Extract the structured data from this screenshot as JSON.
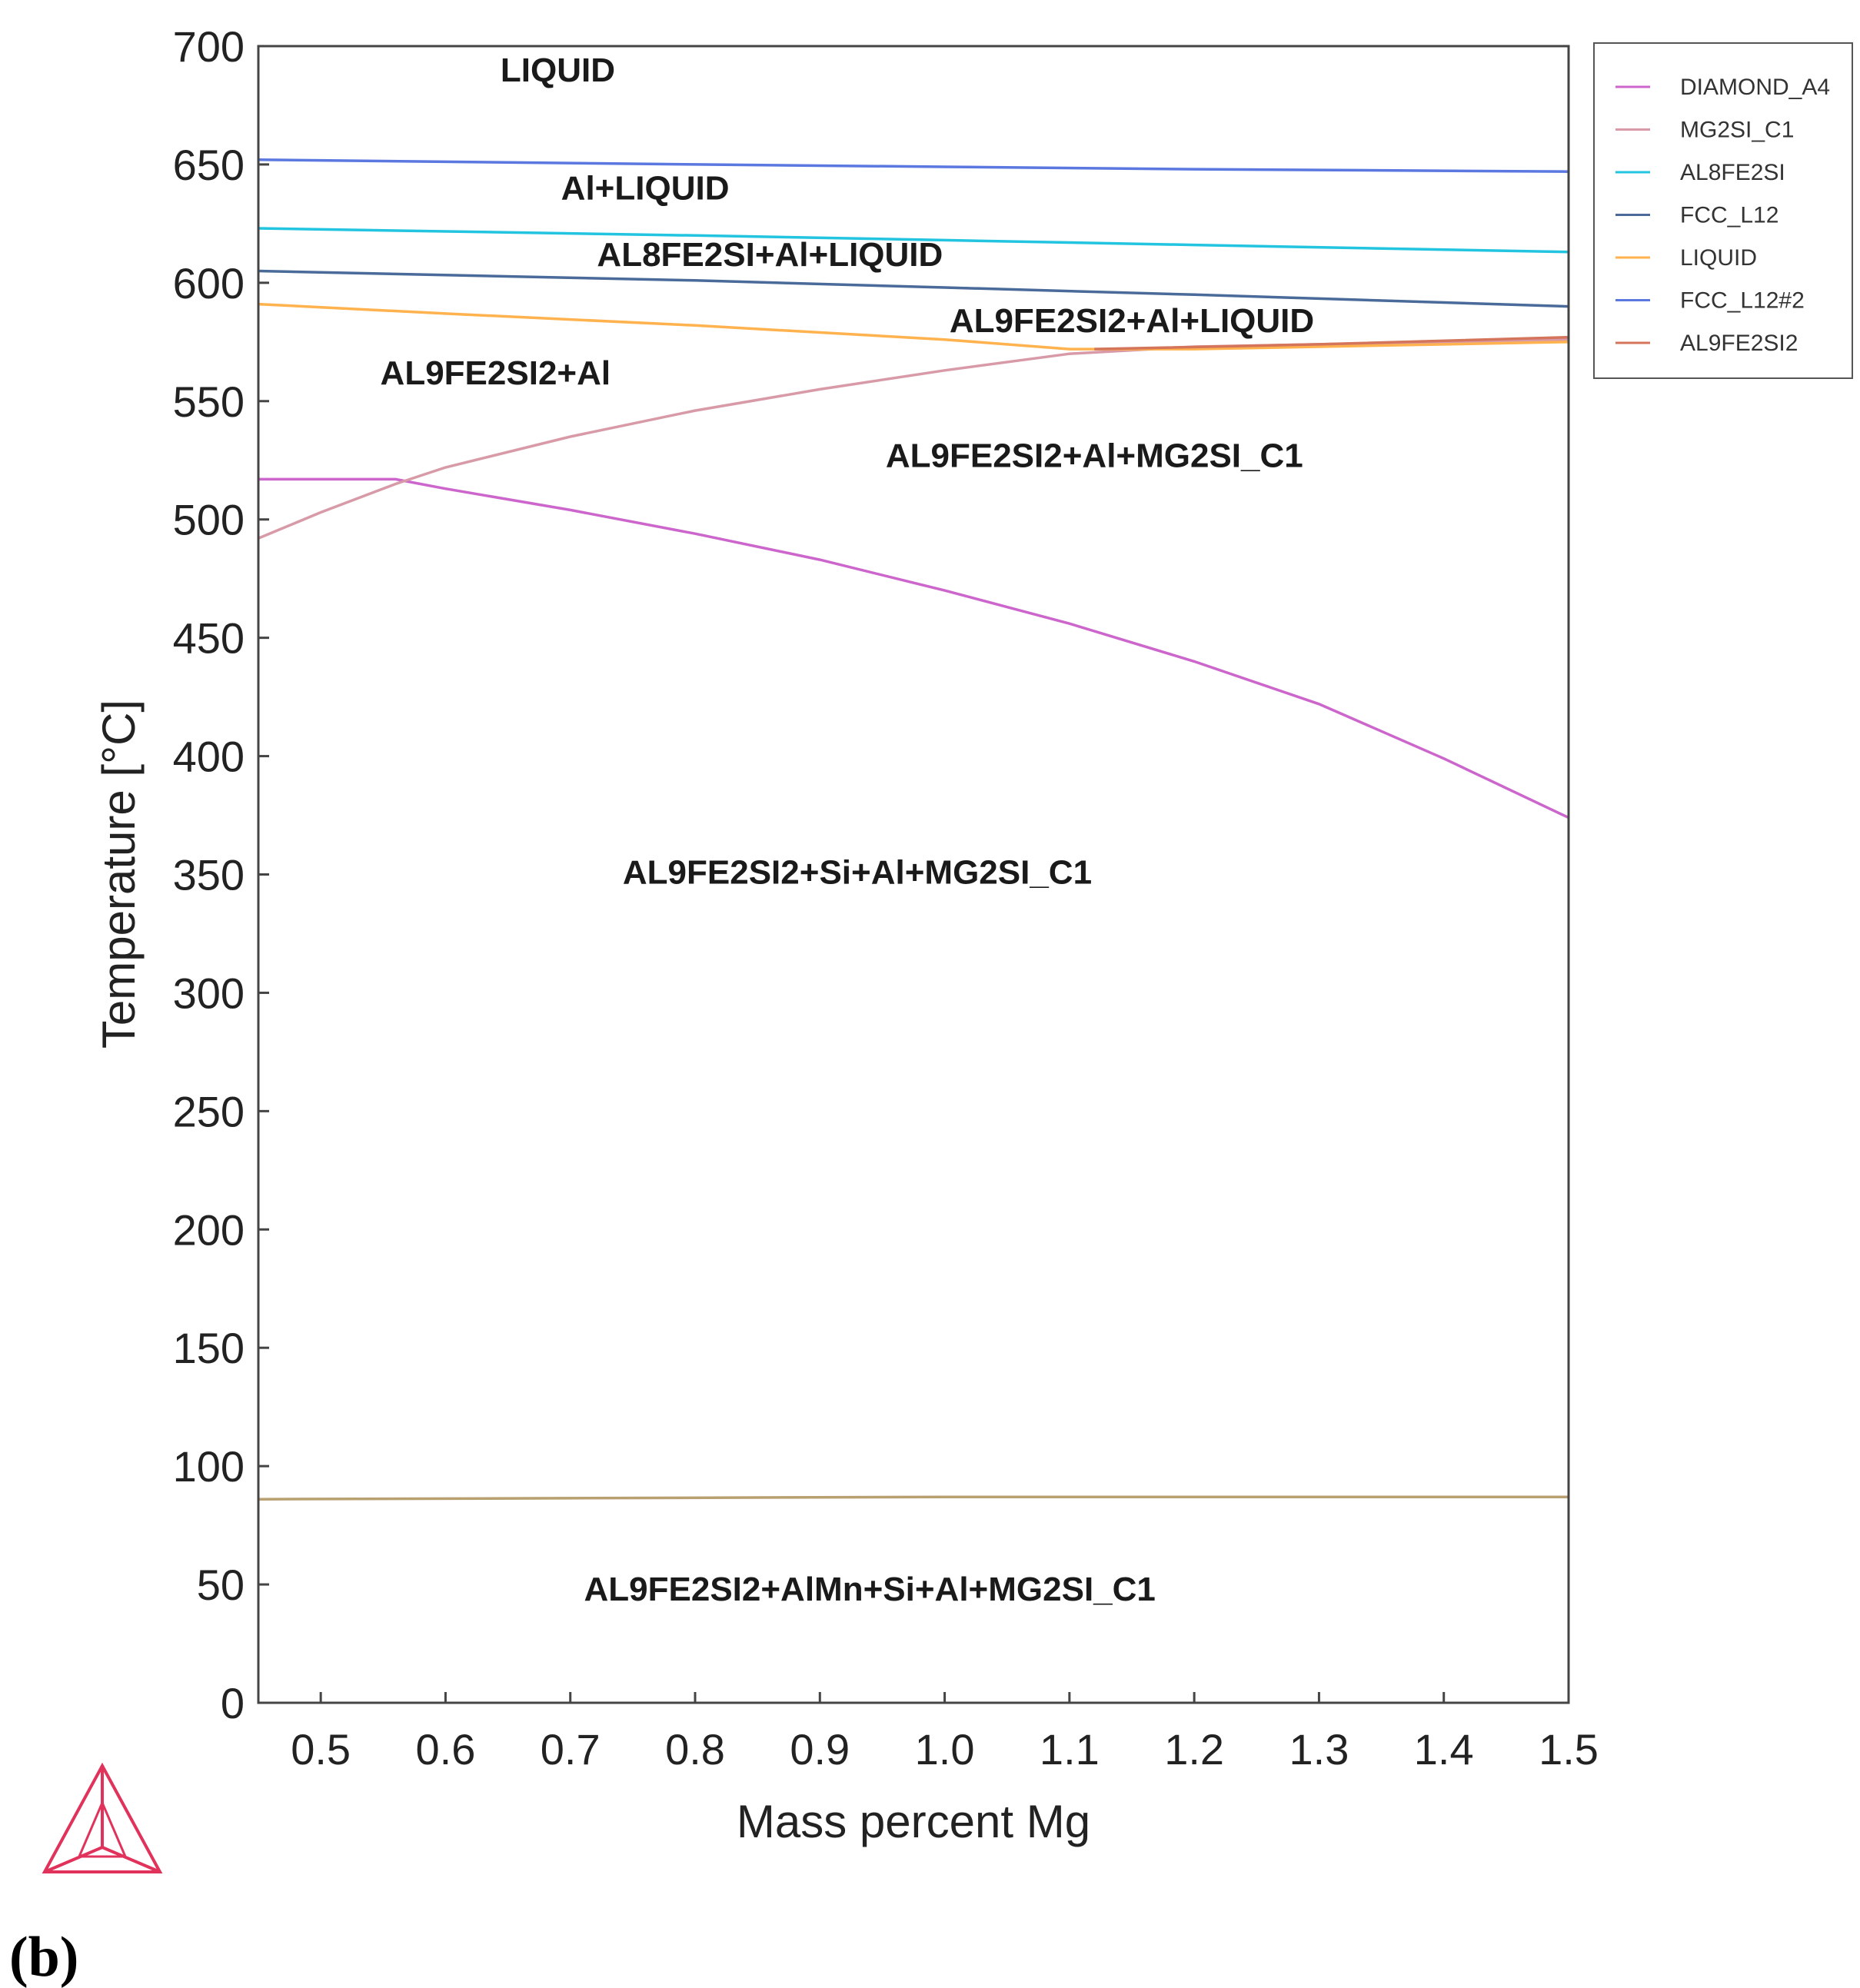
{
  "chart_data": {
    "type": "line",
    "title": "",
    "xlabel": "Mass percent Mg",
    "ylabel": "Temperature [°C]",
    "xlim": [
      0.45,
      1.5
    ],
    "ylim": [
      0,
      700
    ],
    "xticks": [
      "0.5",
      "0.6",
      "0.7",
      "0.8",
      "0.9",
      "1.0",
      "1.1",
      "1.2",
      "1.3",
      "1.4",
      "1.5"
    ],
    "yticks": [
      "0",
      "50",
      "100",
      "150",
      "200",
      "250",
      "300",
      "350",
      "400",
      "450",
      "500",
      "550",
      "600",
      "650",
      "700"
    ],
    "grid": false,
    "legend_position": "outside-top-right",
    "series": [
      {
        "name": "DIAMOND_A4",
        "color": "#cc66cc",
        "points": [
          [
            0.45,
            517
          ],
          [
            0.56,
            517
          ],
          [
            0.6,
            513
          ],
          [
            0.7,
            504
          ],
          [
            0.8,
            494
          ],
          [
            0.9,
            483
          ],
          [
            1.0,
            470
          ],
          [
            1.1,
            456
          ],
          [
            1.2,
            440
          ],
          [
            1.3,
            422
          ],
          [
            1.4,
            399
          ],
          [
            1.5,
            374
          ]
        ]
      },
      {
        "name": "MG2SI_C1",
        "color": "#d99aa8",
        "points": [
          [
            0.45,
            492
          ],
          [
            0.5,
            503
          ],
          [
            0.56,
            515
          ],
          [
            0.6,
            522
          ],
          [
            0.7,
            535
          ],
          [
            0.8,
            546
          ],
          [
            0.9,
            555
          ],
          [
            1.0,
            563
          ],
          [
            1.1,
            570
          ],
          [
            1.2,
            573
          ],
          [
            1.3,
            574
          ],
          [
            1.4,
            575
          ],
          [
            1.5,
            576
          ]
        ]
      },
      {
        "name": "AL8FE2SI",
        "color": "#22c4e0",
        "points": [
          [
            0.45,
            623
          ],
          [
            0.8,
            620
          ],
          [
            1.0,
            618
          ],
          [
            1.2,
            616
          ],
          [
            1.5,
            613
          ]
        ]
      },
      {
        "name": "FCC_L12",
        "color": "#4a6a9a",
        "points": [
          [
            0.45,
            605
          ],
          [
            0.8,
            601
          ],
          [
            1.0,
            598
          ],
          [
            1.2,
            595
          ],
          [
            1.5,
            590
          ]
        ]
      },
      {
        "name": "LIQUID",
        "color": "#ffb24d",
        "points": [
          [
            0.45,
            591
          ],
          [
            0.6,
            587
          ],
          [
            0.8,
            582
          ],
          [
            1.0,
            576
          ],
          [
            1.1,
            572
          ],
          [
            1.2,
            572
          ],
          [
            1.3,
            573
          ],
          [
            1.5,
            575
          ]
        ]
      },
      {
        "name": "FCC_L12#2",
        "color": "#5a78e0",
        "points": [
          [
            0.45,
            652
          ],
          [
            0.8,
            650
          ],
          [
            1.0,
            649
          ],
          [
            1.2,
            648
          ],
          [
            1.5,
            647
          ]
        ]
      },
      {
        "name": "AL9FE2SI2",
        "color": "#d4745a",
        "points": [
          [
            1.12,
            572
          ],
          [
            1.3,
            574
          ],
          [
            1.5,
            577
          ]
        ]
      },
      {
        "name": "",
        "color": "#b8a070",
        "points": [
          [
            0.45,
            86
          ],
          [
            1.0,
            87
          ],
          [
            1.5,
            87
          ]
        ]
      }
    ],
    "annotations": [
      {
        "text": "LIQUID",
        "x": 0.69,
        "y": 690
      },
      {
        "text": "Al+LIQUID",
        "x": 0.76,
        "y": 640
      },
      {
        "text": "AL8FE2SI+Al+LIQUID",
        "x": 0.86,
        "y": 612
      },
      {
        "text": "AL9FE2SI2+Al+LIQUID",
        "x": 1.15,
        "y": 584
      },
      {
        "text": "AL9FE2SI2+Al",
        "x": 0.64,
        "y": 562
      },
      {
        "text": "AL9FE2SI2+Al+MG2SI_C1",
        "x": 1.12,
        "y": 527
      },
      {
        "text": "AL9FE2SI2+Si+Al+MG2SI_C1",
        "x": 0.93,
        "y": 351
      },
      {
        "text": "AL9FE2SI2+AlMn+Si+Al+MG2SI_C1",
        "x": 0.94,
        "y": 48
      }
    ],
    "panel_label": "(b)",
    "logo": "thermo-calc-tetrahedron-logo"
  }
}
